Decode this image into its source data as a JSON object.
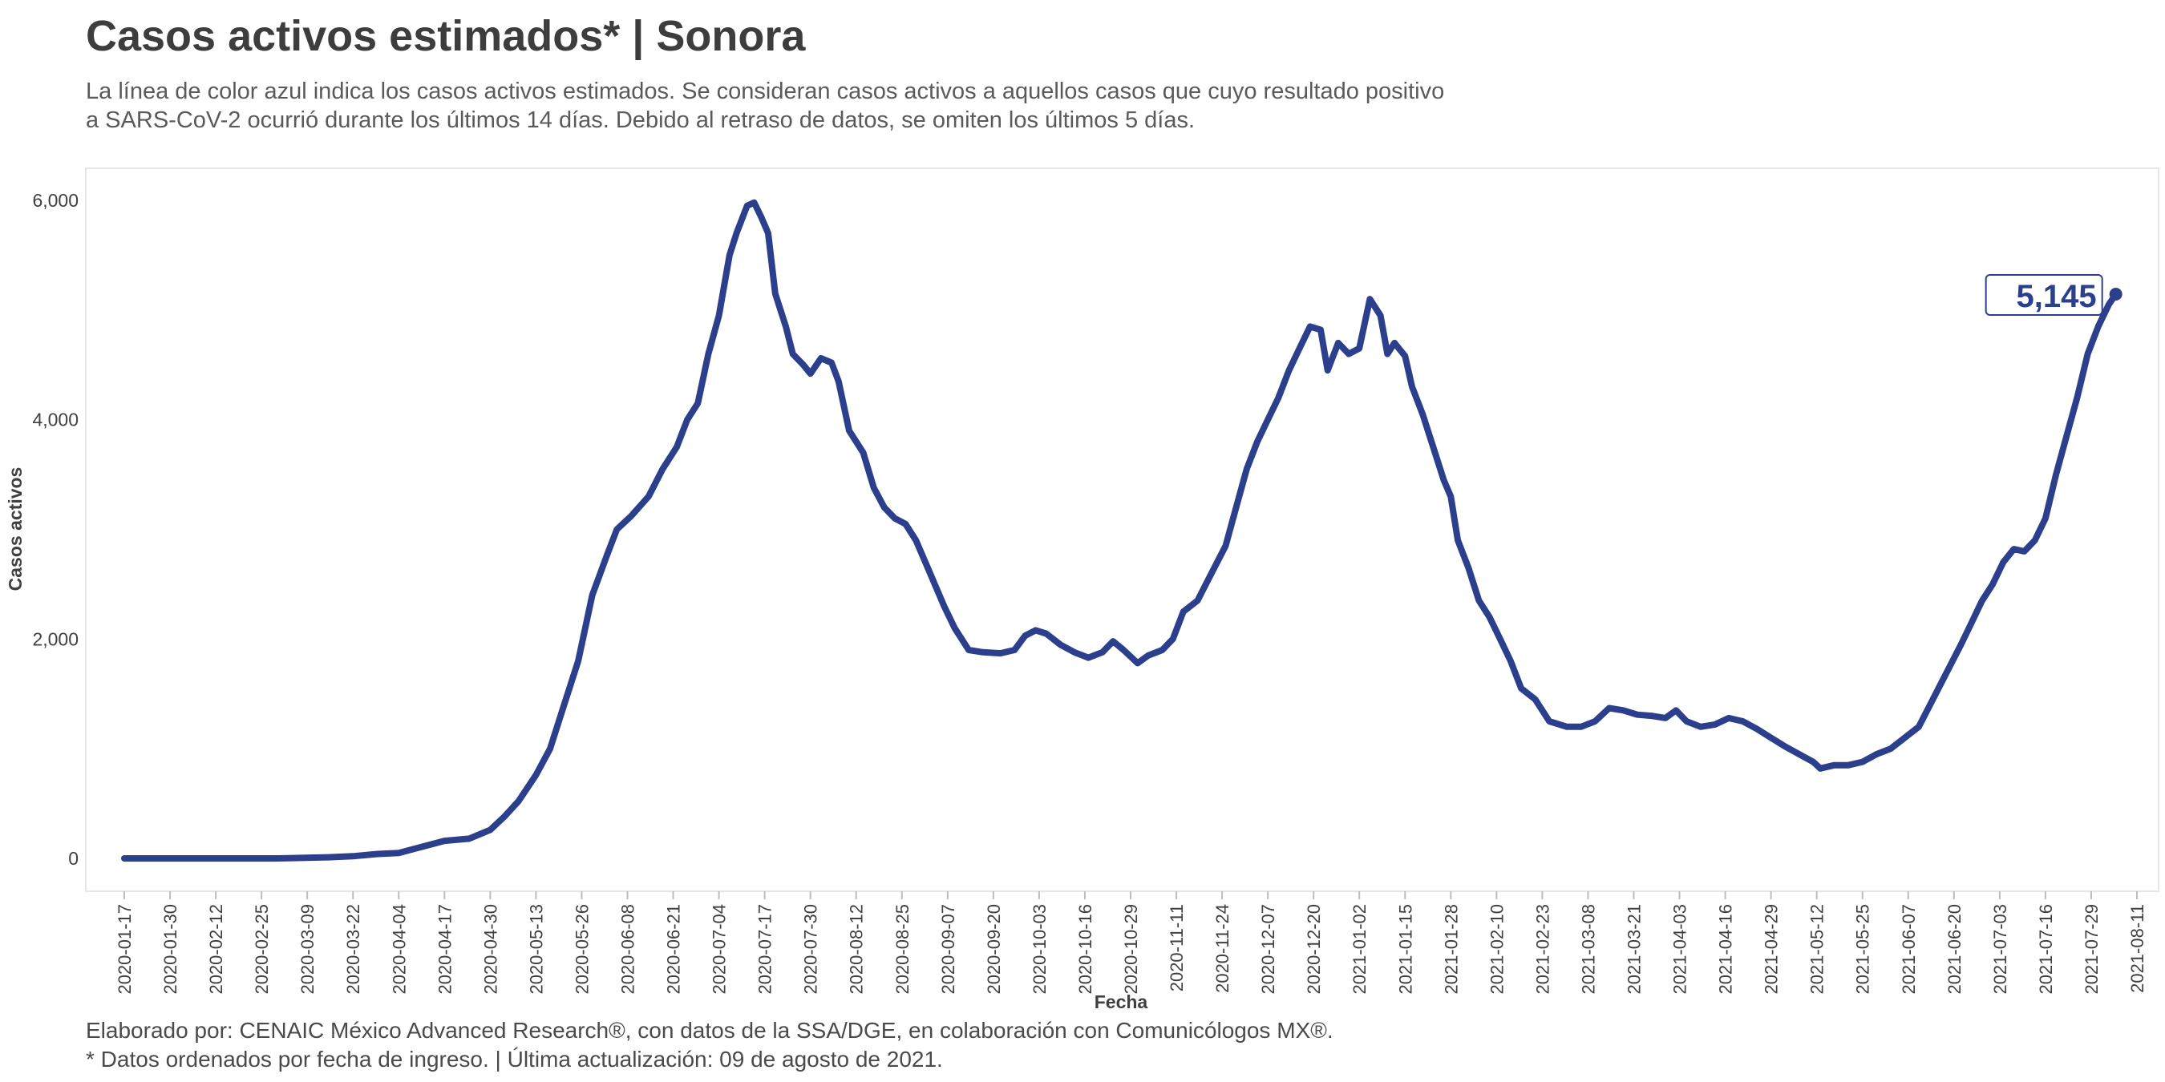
{
  "title": "Casos activos estimados* | Sonora",
  "subtitle": {
    "line1": "La línea de color azul indica los casos activos estimados. Se consideran casos activos a aquellos casos que cuyo resultado positivo",
    "line2": "a SARS-CoV-2 ocurrió durante los últimos 14 días. Debido al retraso de datos, se omiten los últimos 5 días."
  },
  "footer": {
    "line1": "Elaborado por: CENAIC México Advanced Research®, con datos de la SSA/DGE, en colaboración con Comunicólogos MX®.",
    "line2": "* Datos ordenados por fecha de ingreso. | Última actualización: 09 de agosto de 2021."
  },
  "colors": {
    "line": "#2b3f8c",
    "text": "#404040",
    "frame": "#e6e6e6"
  },
  "chart_data": {
    "type": "line",
    "xlabel": "Fecha",
    "ylabel": "Casos activos",
    "xlim": [
      "2020-01-17",
      "2021-08-11"
    ],
    "ylim": [
      -300,
      6300
    ],
    "x_tick_labels": [
      "2020-01-17",
      "2020-01-30",
      "2020-02-12",
      "2020-02-25",
      "2020-03-09",
      "2020-03-22",
      "2020-04-04",
      "2020-04-17",
      "2020-04-30",
      "2020-05-13",
      "2020-05-26",
      "2020-06-08",
      "2020-06-21",
      "2020-07-04",
      "2020-07-17",
      "2020-07-30",
      "2020-08-12",
      "2020-08-25",
      "2020-09-07",
      "2020-09-20",
      "2020-10-03",
      "2020-10-16",
      "2020-10-29",
      "2020-11-11",
      "2020-11-24",
      "2020-12-07",
      "2020-12-20",
      "2021-01-02",
      "2021-01-15",
      "2021-01-28",
      "2021-02-10",
      "2021-02-23",
      "2021-03-08",
      "2021-03-21",
      "2021-04-03",
      "2021-04-16",
      "2021-04-29",
      "2021-05-12",
      "2021-05-25",
      "2021-06-07",
      "2021-06-20",
      "2021-07-03",
      "2021-07-16",
      "2021-07-29",
      "2021-08-11"
    ],
    "y_ticks": [
      0,
      2000,
      4000,
      6000
    ],
    "y_tick_labels": [
      "0",
      "2,000",
      "4,000",
      "6,000"
    ],
    "grid": false,
    "last_value_label": "5,145",
    "series": [
      {
        "points": [
          [
            "2020-01-17",
            0
          ],
          [
            "2020-03-01",
            0
          ],
          [
            "2020-03-15",
            10
          ],
          [
            "2020-03-22",
            20
          ],
          [
            "2020-03-29",
            40
          ],
          [
            "2020-04-04",
            50
          ],
          [
            "2020-04-10",
            100
          ],
          [
            "2020-04-17",
            160
          ],
          [
            "2020-04-24",
            180
          ],
          [
            "2020-04-30",
            260
          ],
          [
            "2020-05-04",
            380
          ],
          [
            "2020-05-08",
            520
          ],
          [
            "2020-05-13",
            760
          ],
          [
            "2020-05-17",
            1000
          ],
          [
            "2020-05-21",
            1400
          ],
          [
            "2020-05-25",
            1800
          ],
          [
            "2020-05-29",
            2400
          ],
          [
            "2020-06-02",
            2750
          ],
          [
            "2020-06-05",
            3000
          ],
          [
            "2020-06-09",
            3120
          ],
          [
            "2020-06-14",
            3300
          ],
          [
            "2020-06-18",
            3550
          ],
          [
            "2020-06-22",
            3750
          ],
          [
            "2020-06-25",
            4000
          ],
          [
            "2020-06-28",
            4150
          ],
          [
            "2020-07-01",
            4600
          ],
          [
            "2020-07-04",
            4950
          ],
          [
            "2020-07-07",
            5500
          ],
          [
            "2020-07-09",
            5700
          ],
          [
            "2020-07-12",
            5950
          ],
          [
            "2020-07-14",
            5980
          ],
          [
            "2020-07-16",
            5850
          ],
          [
            "2020-07-18",
            5700
          ],
          [
            "2020-07-20",
            5150
          ],
          [
            "2020-07-23",
            4850
          ],
          [
            "2020-07-25",
            4600
          ],
          [
            "2020-07-28",
            4500
          ],
          [
            "2020-07-30",
            4420
          ],
          [
            "2020-08-02",
            4560
          ],
          [
            "2020-08-05",
            4520
          ],
          [
            "2020-08-07",
            4350
          ],
          [
            "2020-08-10",
            3900
          ],
          [
            "2020-08-14",
            3700
          ],
          [
            "2020-08-17",
            3380
          ],
          [
            "2020-08-20",
            3200
          ],
          [
            "2020-08-23",
            3100
          ],
          [
            "2020-08-26",
            3050
          ],
          [
            "2020-08-29",
            2900
          ],
          [
            "2020-09-02",
            2600
          ],
          [
            "2020-09-06",
            2300
          ],
          [
            "2020-09-09",
            2100
          ],
          [
            "2020-09-13",
            1900
          ],
          [
            "2020-09-17",
            1880
          ],
          [
            "2020-09-22",
            1870
          ],
          [
            "2020-09-26",
            1900
          ],
          [
            "2020-09-29",
            2030
          ],
          [
            "2020-10-02",
            2080
          ],
          [
            "2020-10-05",
            2050
          ],
          [
            "2020-10-09",
            1950
          ],
          [
            "2020-10-13",
            1880
          ],
          [
            "2020-10-17",
            1830
          ],
          [
            "2020-10-21",
            1880
          ],
          [
            "2020-10-24",
            1980
          ],
          [
            "2020-10-27",
            1900
          ],
          [
            "2020-10-31",
            1780
          ],
          [
            "2020-11-03",
            1850
          ],
          [
            "2020-11-07",
            1900
          ],
          [
            "2020-11-10",
            2000
          ],
          [
            "2020-11-13",
            2250
          ],
          [
            "2020-11-17",
            2350
          ],
          [
            "2020-11-21",
            2600
          ],
          [
            "2020-11-25",
            2850
          ],
          [
            "2020-11-28",
            3200
          ],
          [
            "2020-12-01",
            3550
          ],
          [
            "2020-12-04",
            3800
          ],
          [
            "2020-12-07",
            4000
          ],
          [
            "2020-12-10",
            4200
          ],
          [
            "2020-12-13",
            4450
          ],
          [
            "2020-12-16",
            4650
          ],
          [
            "2020-12-19",
            4850
          ],
          [
            "2020-12-22",
            4820
          ],
          [
            "2020-12-24",
            4450
          ],
          [
            "2020-12-27",
            4700
          ],
          [
            "2020-12-30",
            4600
          ],
          [
            "2021-01-02",
            4650
          ],
          [
            "2021-01-05",
            5100
          ],
          [
            "2021-01-08",
            4950
          ],
          [
            "2021-01-10",
            4600
          ],
          [
            "2021-01-12",
            4700
          ],
          [
            "2021-01-15",
            4580
          ],
          [
            "2021-01-17",
            4300
          ],
          [
            "2021-01-20",
            4050
          ],
          [
            "2021-01-23",
            3750
          ],
          [
            "2021-01-26",
            3450
          ],
          [
            "2021-01-28",
            3300
          ],
          [
            "2021-01-30",
            2900
          ],
          [
            "2021-02-02",
            2650
          ],
          [
            "2021-02-05",
            2350
          ],
          [
            "2021-02-08",
            2200
          ],
          [
            "2021-02-11",
            2000
          ],
          [
            "2021-02-14",
            1800
          ],
          [
            "2021-02-17",
            1550
          ],
          [
            "2021-02-21",
            1450
          ],
          [
            "2021-02-25",
            1250
          ],
          [
            "2021-03-02",
            1200
          ],
          [
            "2021-03-06",
            1200
          ],
          [
            "2021-03-10",
            1250
          ],
          [
            "2021-03-14",
            1370
          ],
          [
            "2021-03-18",
            1350
          ],
          [
            "2021-03-22",
            1310
          ],
          [
            "2021-03-26",
            1300
          ],
          [
            "2021-03-30",
            1280
          ],
          [
            "2021-04-02",
            1350
          ],
          [
            "2021-04-05",
            1250
          ],
          [
            "2021-04-09",
            1200
          ],
          [
            "2021-04-13",
            1220
          ],
          [
            "2021-04-17",
            1280
          ],
          [
            "2021-04-21",
            1250
          ],
          [
            "2021-04-25",
            1180
          ],
          [
            "2021-04-29",
            1100
          ],
          [
            "2021-05-03",
            1020
          ],
          [
            "2021-05-07",
            950
          ],
          [
            "2021-05-11",
            880
          ],
          [
            "2021-05-13",
            820
          ],
          [
            "2021-05-17",
            850
          ],
          [
            "2021-05-21",
            850
          ],
          [
            "2021-05-25",
            880
          ],
          [
            "2021-05-29",
            950
          ],
          [
            "2021-06-02",
            1000
          ],
          [
            "2021-06-06",
            1100
          ],
          [
            "2021-06-10",
            1200
          ],
          [
            "2021-06-14",
            1450
          ],
          [
            "2021-06-18",
            1700
          ],
          [
            "2021-06-22",
            1950
          ],
          [
            "2021-06-25",
            2150
          ],
          [
            "2021-06-28",
            2350
          ],
          [
            "2021-07-01",
            2500
          ],
          [
            "2021-07-04",
            2700
          ],
          [
            "2021-07-07",
            2820
          ],
          [
            "2021-07-10",
            2800
          ],
          [
            "2021-07-13",
            2900
          ],
          [
            "2021-07-16",
            3100
          ],
          [
            "2021-07-19",
            3500
          ],
          [
            "2021-07-22",
            3850
          ],
          [
            "2021-07-25",
            4200
          ],
          [
            "2021-07-28",
            4600
          ],
          [
            "2021-07-31",
            4850
          ],
          [
            "2021-08-03",
            5050
          ],
          [
            "2021-08-05",
            5145
          ]
        ]
      }
    ]
  }
}
